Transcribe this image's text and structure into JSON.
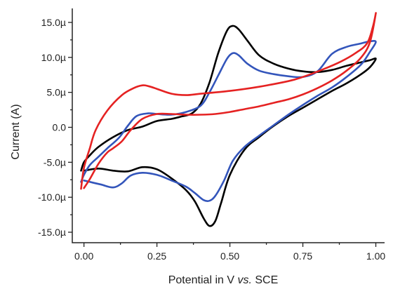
{
  "chart_data": {
    "type": "line",
    "title": "",
    "xlabel": "Potential in V vs. SCE",
    "xlabel_parts": [
      "Potential in V ",
      "vs.",
      " SCE"
    ],
    "ylabel": "Current (A)",
    "xlim": [
      -0.04,
      1.03
    ],
    "ylim": [
      -16.5,
      17.0
    ],
    "x_ticks": [
      0.0,
      0.25,
      0.5,
      0.75,
      1.0
    ],
    "x_tick_labels": [
      "0.00",
      "0.25",
      "0.50",
      "0.75",
      "1.00"
    ],
    "y_ticks": [
      -15,
      -10,
      -5,
      0,
      5,
      10,
      15
    ],
    "y_tick_labels": [
      "-15.0µ",
      "-10.0µ",
      "-5.0µ",
      "0.0",
      "5.0µ",
      "10.0µ",
      "15.0µ"
    ],
    "grid": false,
    "series": [
      {
        "color": "#000000",
        "points": [
          [
            0.0,
            -6.2
          ],
          [
            0.05,
            -5.9
          ],
          [
            0.1,
            -6.2
          ],
          [
            0.15,
            -6.3
          ],
          [
            0.2,
            -5.7
          ],
          [
            0.25,
            -6.0
          ],
          [
            0.3,
            -7.3
          ],
          [
            0.35,
            -9.0
          ],
          [
            0.38,
            -10.6
          ],
          [
            0.41,
            -13.0
          ],
          [
            0.43,
            -14.1
          ],
          [
            0.45,
            -13.4
          ],
          [
            0.47,
            -10.8
          ],
          [
            0.5,
            -6.8
          ],
          [
            0.55,
            -3.2
          ],
          [
            0.6,
            -1.4
          ],
          [
            0.65,
            0.2
          ],
          [
            0.7,
            1.6
          ],
          [
            0.75,
            2.8
          ],
          [
            0.8,
            4.0
          ],
          [
            0.85,
            5.2
          ],
          [
            0.9,
            6.3
          ],
          [
            0.95,
            7.6
          ],
          [
            0.98,
            8.6
          ],
          [
            1.0,
            9.8
          ],
          [
            0.98,
            9.6
          ],
          [
            0.95,
            9.3
          ],
          [
            0.9,
            8.8
          ],
          [
            0.85,
            8.2
          ],
          [
            0.8,
            7.9
          ],
          [
            0.75,
            8.0
          ],
          [
            0.7,
            8.4
          ],
          [
            0.65,
            9.1
          ],
          [
            0.6,
            10.3
          ],
          [
            0.56,
            12.4
          ],
          [
            0.53,
            14.0
          ],
          [
            0.51,
            14.5
          ],
          [
            0.49,
            13.8
          ],
          [
            0.46,
            10.6
          ],
          [
            0.43,
            6.4
          ],
          [
            0.4,
            3.4
          ],
          [
            0.37,
            2.0
          ],
          [
            0.33,
            1.5
          ],
          [
            0.3,
            1.2
          ],
          [
            0.25,
            0.9
          ],
          [
            0.2,
            0.1
          ],
          [
            0.15,
            -0.4
          ],
          [
            0.1,
            -1.4
          ],
          [
            0.05,
            -2.8
          ],
          [
            0.02,
            -4.0
          ],
          [
            0.0,
            -5.0
          ],
          [
            -0.01,
            -6.2
          ]
        ]
      },
      {
        "color": "#3355bb",
        "points": [
          [
            0.0,
            -7.6
          ],
          [
            0.03,
            -7.9
          ],
          [
            0.06,
            -8.2
          ],
          [
            0.1,
            -8.6
          ],
          [
            0.13,
            -8.0
          ],
          [
            0.16,
            -6.9
          ],
          [
            0.2,
            -6.5
          ],
          [
            0.25,
            -6.8
          ],
          [
            0.3,
            -7.6
          ],
          [
            0.35,
            -8.5
          ],
          [
            0.38,
            -9.4
          ],
          [
            0.41,
            -10.4
          ],
          [
            0.43,
            -10.5
          ],
          [
            0.45,
            -9.8
          ],
          [
            0.48,
            -7.6
          ],
          [
            0.51,
            -4.8
          ],
          [
            0.55,
            -2.8
          ],
          [
            0.6,
            -1.2
          ],
          [
            0.65,
            0.3
          ],
          [
            0.7,
            1.8
          ],
          [
            0.75,
            3.2
          ],
          [
            0.8,
            4.5
          ],
          [
            0.85,
            5.7
          ],
          [
            0.9,
            7.2
          ],
          [
            0.95,
            9.0
          ],
          [
            0.98,
            10.8
          ],
          [
            1.0,
            12.2
          ],
          [
            0.98,
            12.3
          ],
          [
            0.95,
            12.0
          ],
          [
            0.9,
            11.5
          ],
          [
            0.85,
            10.5
          ],
          [
            0.8,
            8.0
          ],
          [
            0.75,
            7.2
          ],
          [
            0.7,
            7.3
          ],
          [
            0.65,
            7.6
          ],
          [
            0.6,
            8.1
          ],
          [
            0.56,
            9.1
          ],
          [
            0.53,
            10.3
          ],
          [
            0.51,
            10.6
          ],
          [
            0.49,
            9.8
          ],
          [
            0.46,
            7.4
          ],
          [
            0.43,
            5.0
          ],
          [
            0.4,
            3.1
          ],
          [
            0.35,
            2.2
          ],
          [
            0.3,
            1.8
          ],
          [
            0.25,
            1.9
          ],
          [
            0.22,
            2.0
          ],
          [
            0.18,
            1.6
          ],
          [
            0.15,
            0.2
          ],
          [
            0.12,
            -1.5
          ],
          [
            0.08,
            -3.0
          ],
          [
            0.05,
            -4.2
          ],
          [
            0.02,
            -5.4
          ],
          [
            0.0,
            -6.8
          ],
          [
            -0.01,
            -7.8
          ]
        ]
      },
      {
        "color": "#e52222",
        "points": [
          [
            0.0,
            -8.7
          ],
          [
            0.02,
            -7.4
          ],
          [
            0.05,
            -5.2
          ],
          [
            0.08,
            -3.6
          ],
          [
            0.1,
            -3.0
          ],
          [
            0.13,
            -2.0
          ],
          [
            0.16,
            -0.4
          ],
          [
            0.2,
            1.2
          ],
          [
            0.25,
            1.9
          ],
          [
            0.3,
            1.9
          ],
          [
            0.35,
            1.8
          ],
          [
            0.4,
            1.8
          ],
          [
            0.45,
            1.9
          ],
          [
            0.5,
            2.2
          ],
          [
            0.55,
            2.6
          ],
          [
            0.6,
            3.0
          ],
          [
            0.65,
            3.5
          ],
          [
            0.7,
            4.0
          ],
          [
            0.75,
            4.7
          ],
          [
            0.8,
            5.6
          ],
          [
            0.85,
            6.7
          ],
          [
            0.9,
            8.1
          ],
          [
            0.95,
            10.0
          ],
          [
            0.98,
            12.2
          ],
          [
            1.0,
            16.3
          ],
          [
            0.99,
            14.4
          ],
          [
            0.97,
            12.0
          ],
          [
            0.93,
            10.6
          ],
          [
            0.88,
            9.4
          ],
          [
            0.82,
            8.3
          ],
          [
            0.75,
            7.2
          ],
          [
            0.7,
            6.6
          ],
          [
            0.6,
            5.8
          ],
          [
            0.5,
            5.2
          ],
          [
            0.4,
            4.8
          ],
          [
            0.35,
            4.6
          ],
          [
            0.3,
            4.8
          ],
          [
            0.25,
            5.5
          ],
          [
            0.22,
            5.9
          ],
          [
            0.2,
            6.0
          ],
          [
            0.17,
            5.6
          ],
          [
            0.13,
            4.6
          ],
          [
            0.08,
            2.4
          ],
          [
            0.04,
            -0.4
          ],
          [
            0.02,
            -3.0
          ],
          [
            0.0,
            -5.8
          ],
          [
            -0.01,
            -8.8
          ]
        ]
      }
    ]
  }
}
